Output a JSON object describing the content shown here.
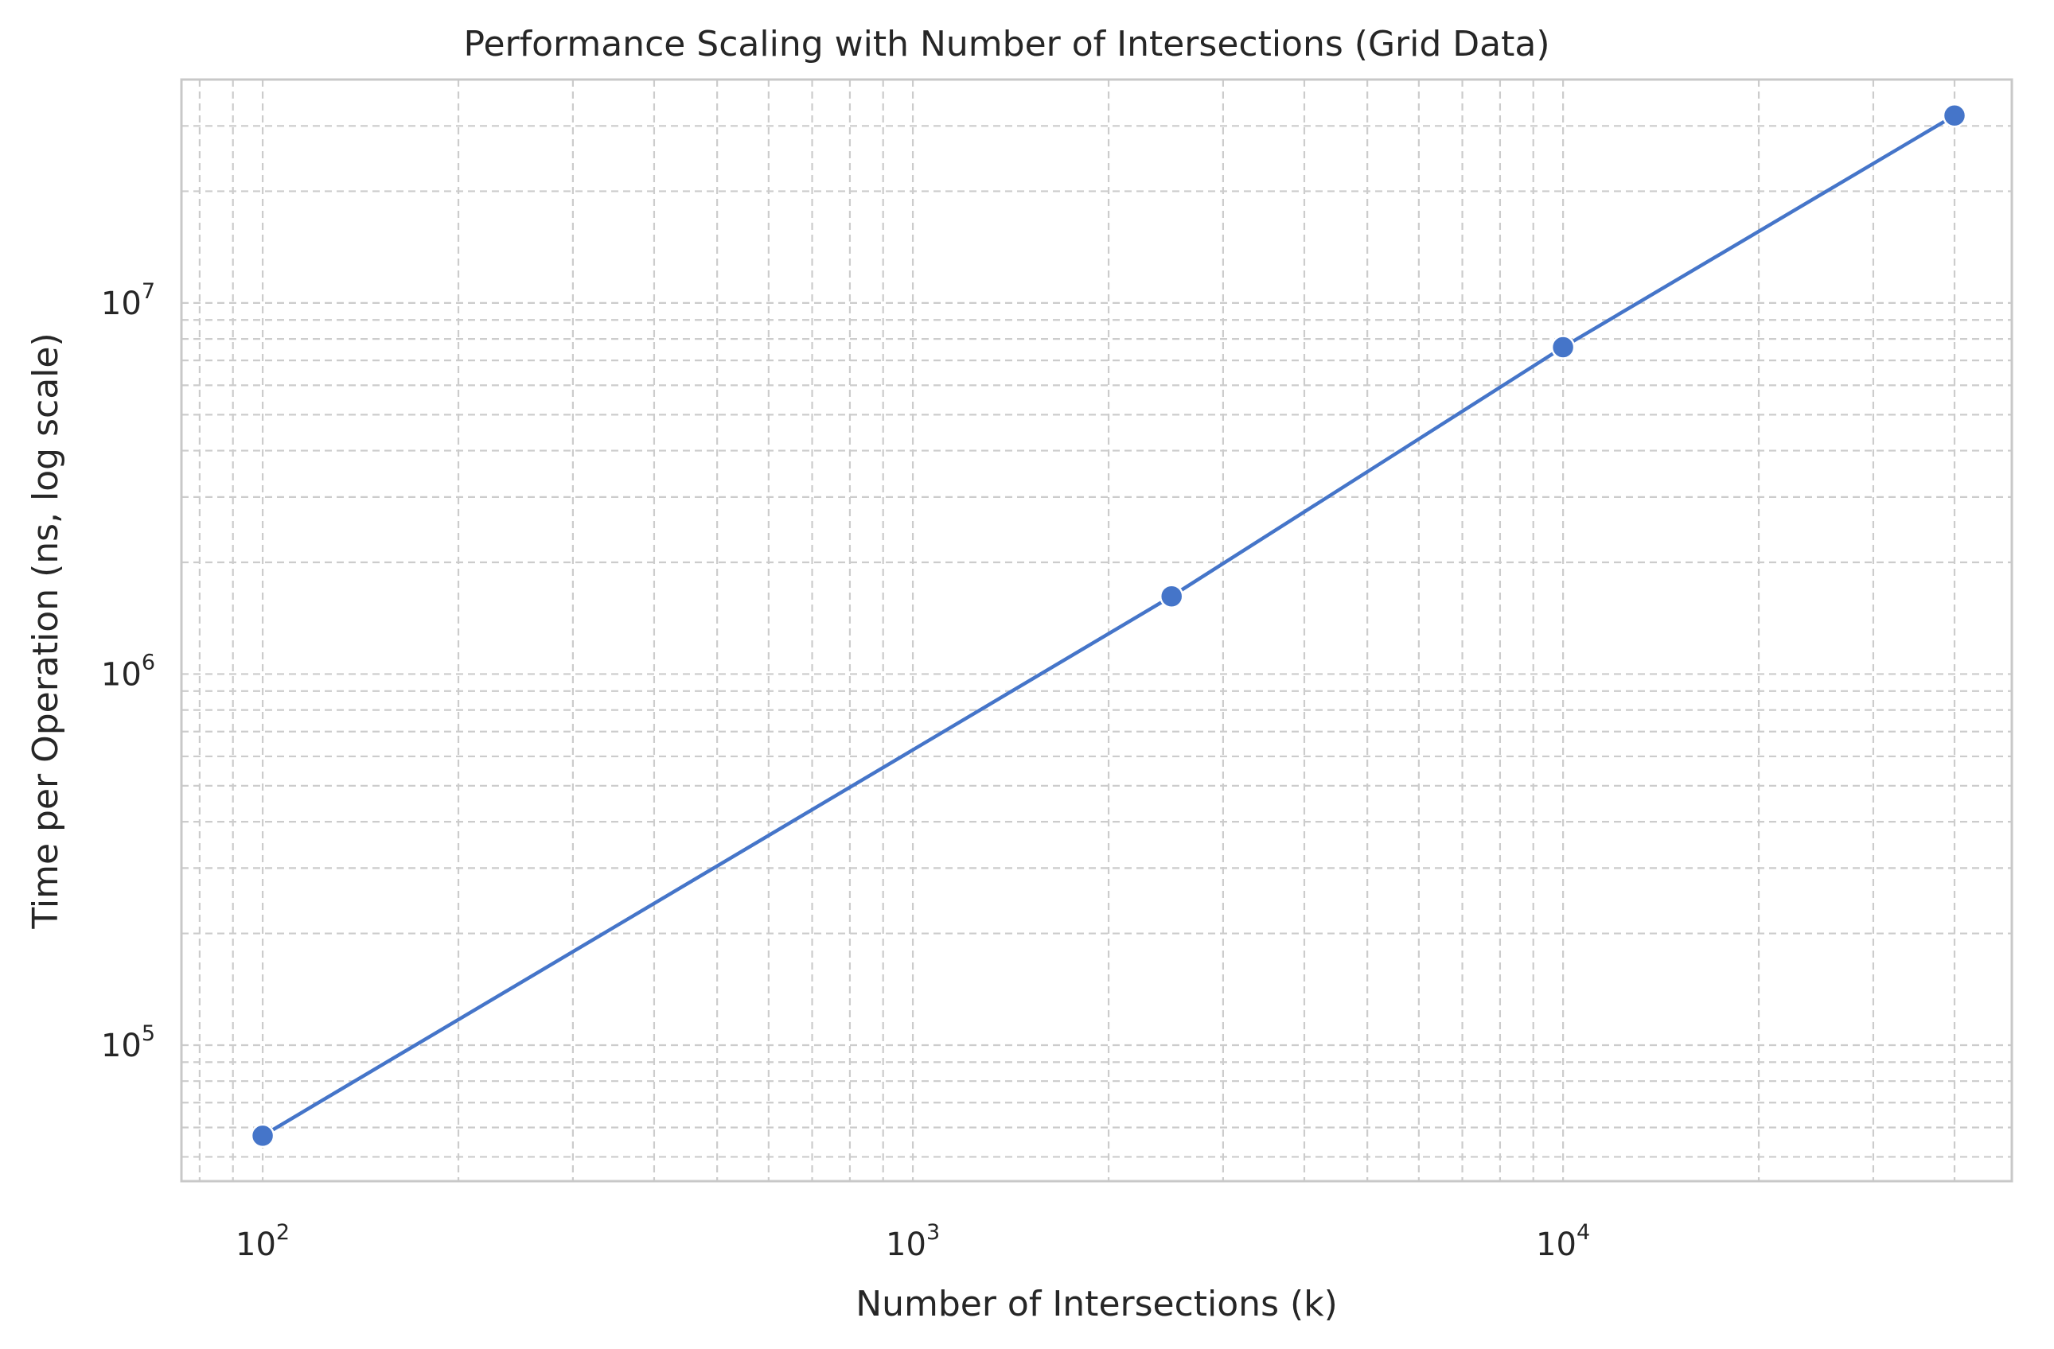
{
  "chart_data": {
    "type": "line",
    "title": "Performance Scaling with Number of Intersections (Grid Data)",
    "xlabel": "Number of Intersections (k)",
    "ylabel": "Time per Operation (ns, log scale)",
    "xscale": "log",
    "yscale": "log",
    "xlim": [
      75,
      49000
    ],
    "ylim": [
      43000,
      40000000
    ],
    "grid": true,
    "grid_style": "dashed, major and minor",
    "legend": "none",
    "x_ticks": [
      {
        "base": "10",
        "exp": "2",
        "value": 100
      },
      {
        "base": "10",
        "exp": "3",
        "value": 1000
      },
      {
        "base": "10",
        "exp": "4",
        "value": 10000
      }
    ],
    "y_ticks": [
      {
        "base": "10",
        "exp": "5",
        "value": 100000
      },
      {
        "base": "10",
        "exp": "6",
        "value": 1000000
      },
      {
        "base": "10",
        "exp": "7",
        "value": 10000000
      }
    ],
    "series": [
      {
        "x": [
          100,
          2500,
          10000,
          40000
        ],
        "y": [
          57000,
          1620000,
          7600000,
          32000000
        ],
        "color": "#4575c9",
        "marker": "circle"
      }
    ]
  }
}
